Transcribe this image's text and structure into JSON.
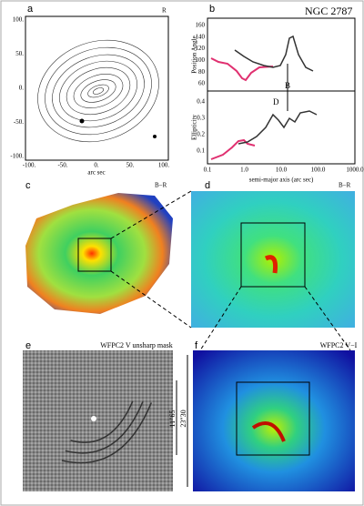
{
  "panels": {
    "a": {
      "label": "a",
      "corner": "R",
      "x_axis_label": "arc sec",
      "xticks": [
        "-100.",
        "-50.",
        "0.",
        "50.",
        "100."
      ],
      "yticks": [
        "100.",
        "50.",
        "0.",
        "-50.",
        "-100."
      ]
    },
    "b": {
      "label": "b",
      "title": "NGC 2787",
      "top_ylabel": "Position Angle",
      "top_yticks": [
        "160",
        "140",
        "120",
        "100",
        "80",
        "60"
      ],
      "bottom_ylabel": "Ellipticity",
      "bottom_yticks": [
        "0.4",
        "0.3",
        "0.2",
        "0.1"
      ],
      "xlabel": "semi-major axis (arc sec)",
      "xticks": [
        "0.1",
        "1.0",
        "10.0",
        "100.0",
        "1000.0"
      ],
      "marker_B": "B",
      "marker_D": "D"
    },
    "c": {
      "label": "c",
      "corner": "B−R"
    },
    "d": {
      "label": "d",
      "corner": "B−R"
    },
    "e": {
      "label": "e",
      "caption": "WFPC2 V unsharp mask",
      "scale_inner": "11″65",
      "scale_outer": "23″30"
    },
    "f": {
      "label": "f",
      "caption": "WFPC2 V−I"
    }
  }
}
